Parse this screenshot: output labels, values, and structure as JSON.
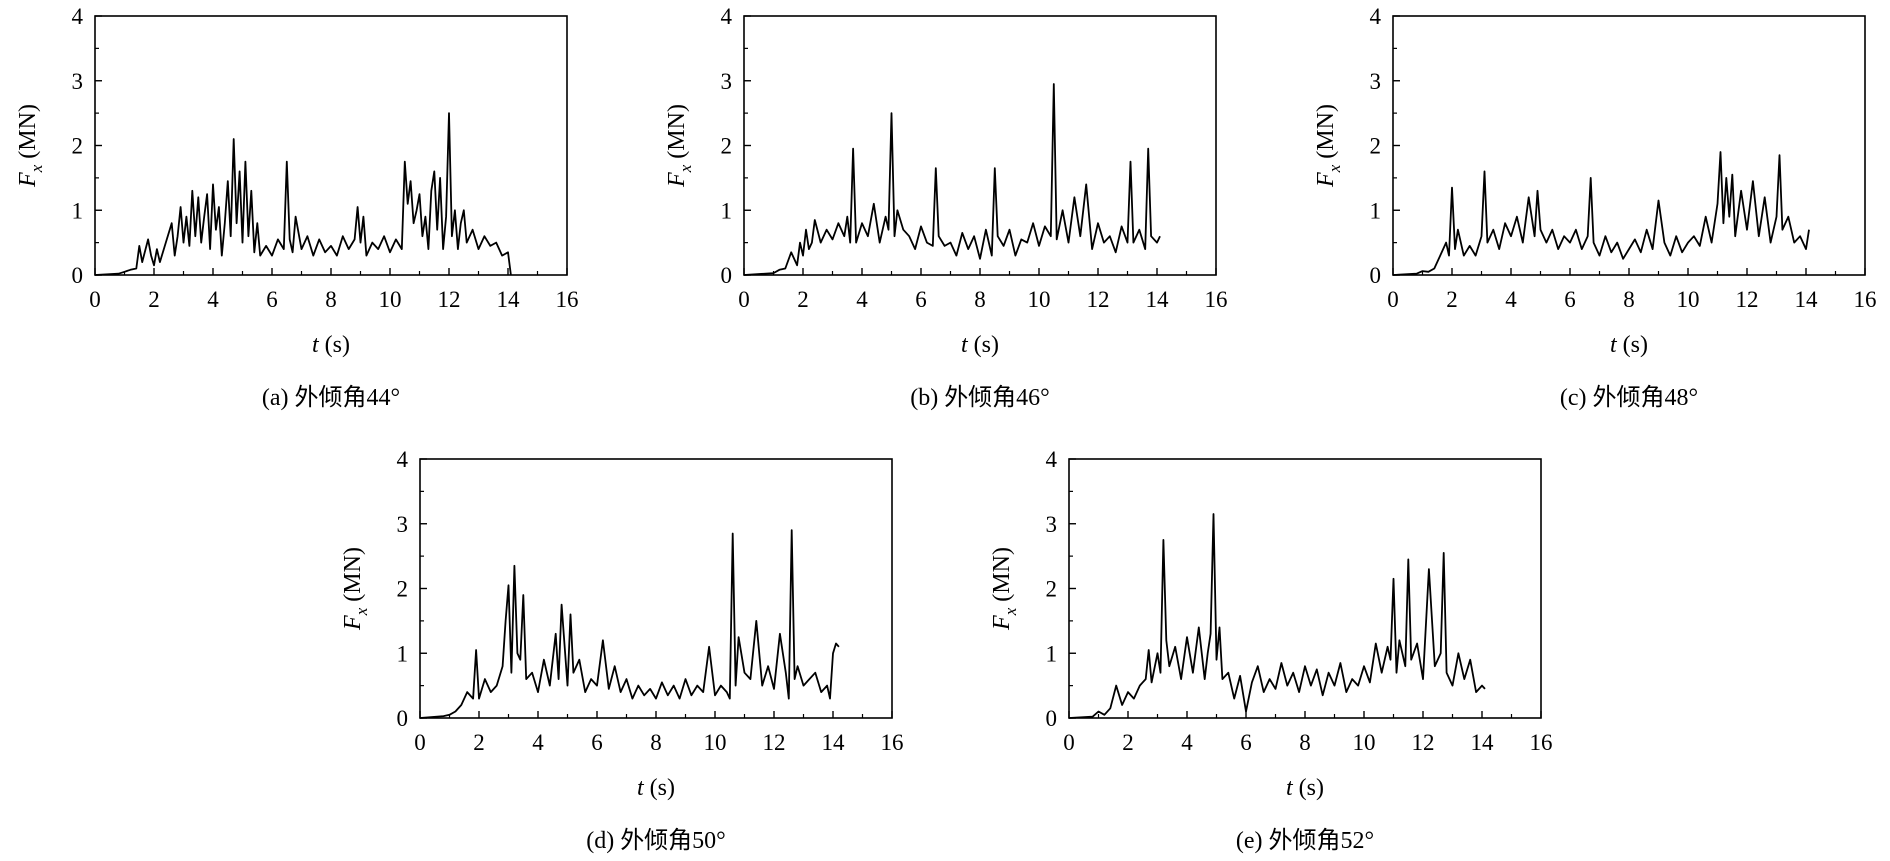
{
  "figure": {
    "panels": [
      {
        "caption": "(a) 外倾角44°"
      },
      {
        "caption": "(b) 外倾角46°"
      },
      {
        "caption": "(c) 外倾角48°"
      },
      {
        "caption": "(d) 外倾角50°"
      },
      {
        "caption": "(e) 外倾角52°"
      }
    ]
  },
  "colors": {
    "line": "#000000",
    "axis": "#000000",
    "background": "#ffffff"
  },
  "chart_data": [
    {
      "type": "line",
      "title": "(a) 外倾角44°",
      "xlabel_var": "t",
      "xlabel_unit": "(s)",
      "ylabel_var": "F",
      "ylabel_sub": "x",
      "ylabel_unit": "(MN)",
      "xlim": [
        0,
        16
      ],
      "ylim": [
        0,
        4
      ],
      "xticks": [
        0,
        2,
        4,
        6,
        8,
        10,
        12,
        14,
        16
      ],
      "yticks": [
        0,
        1,
        2,
        3,
        4
      ],
      "series": [
        {
          "name": "Fx",
          "x": [
            0.0,
            0.8,
            1.0,
            1.2,
            1.4,
            1.5,
            1.6,
            1.8,
            1.9,
            2.0,
            2.1,
            2.2,
            2.4,
            2.6,
            2.7,
            2.8,
            2.9,
            3.0,
            3.1,
            3.2,
            3.3,
            3.4,
            3.5,
            3.6,
            3.7,
            3.8,
            3.9,
            4.0,
            4.1,
            4.2,
            4.3,
            4.4,
            4.5,
            4.6,
            4.7,
            4.8,
            4.9,
            5.0,
            5.1,
            5.2,
            5.3,
            5.4,
            5.5,
            5.6,
            5.8,
            6.0,
            6.2,
            6.4,
            6.5,
            6.6,
            6.7,
            6.8,
            7.0,
            7.2,
            7.4,
            7.6,
            7.8,
            8.0,
            8.2,
            8.4,
            8.6,
            8.8,
            8.9,
            9.0,
            9.1,
            9.2,
            9.4,
            9.6,
            9.8,
            10.0,
            10.2,
            10.4,
            10.5,
            10.6,
            10.7,
            10.8,
            10.9,
            11.0,
            11.1,
            11.2,
            11.3,
            11.4,
            11.5,
            11.6,
            11.7,
            11.8,
            11.9,
            12.0,
            12.1,
            12.2,
            12.3,
            12.4,
            12.5,
            12.6,
            12.8,
            13.0,
            13.2,
            13.4,
            13.6,
            13.8,
            14.0,
            14.1
          ],
          "y": [
            0.0,
            0.02,
            0.05,
            0.08,
            0.1,
            0.45,
            0.2,
            0.55,
            0.3,
            0.15,
            0.4,
            0.2,
            0.5,
            0.8,
            0.3,
            0.6,
            1.05,
            0.5,
            0.9,
            0.45,
            1.3,
            0.6,
            1.2,
            0.5,
            0.9,
            1.25,
            0.4,
            1.4,
            0.7,
            1.05,
            0.3,
            0.8,
            1.45,
            0.6,
            2.1,
            0.8,
            1.6,
            0.5,
            1.75,
            0.6,
            1.3,
            0.35,
            0.8,
            0.3,
            0.45,
            0.3,
            0.55,
            0.4,
            1.75,
            0.55,
            0.35,
            0.9,
            0.4,
            0.6,
            0.3,
            0.55,
            0.35,
            0.45,
            0.3,
            0.6,
            0.4,
            0.55,
            1.05,
            0.5,
            0.9,
            0.3,
            0.5,
            0.4,
            0.6,
            0.35,
            0.55,
            0.4,
            1.75,
            1.1,
            1.45,
            0.8,
            1.0,
            1.25,
            0.6,
            0.9,
            0.4,
            1.3,
            1.6,
            0.7,
            1.5,
            0.4,
            0.9,
            2.5,
            0.6,
            1.0,
            0.4,
            0.8,
            1.0,
            0.5,
            0.7,
            0.4,
            0.6,
            0.45,
            0.5,
            0.3,
            0.35,
            0.0
          ]
        }
      ]
    },
    {
      "type": "line",
      "title": "(b) 外倾角46°",
      "xlabel_var": "t",
      "xlabel_unit": "(s)",
      "ylabel_var": "F",
      "ylabel_sub": "x",
      "ylabel_unit": "(MN)",
      "xlim": [
        0,
        16
      ],
      "ylim": [
        0,
        4
      ],
      "xticks": [
        0,
        2,
        4,
        6,
        8,
        10,
        12,
        14,
        16
      ],
      "yticks": [
        0,
        1,
        2,
        3,
        4
      ],
      "series": [
        {
          "name": "Fx",
          "x": [
            0.0,
            1.0,
            1.2,
            1.4,
            1.6,
            1.8,
            1.9,
            2.0,
            2.1,
            2.2,
            2.3,
            2.4,
            2.6,
            2.8,
            3.0,
            3.2,
            3.4,
            3.5,
            3.6,
            3.7,
            3.8,
            4.0,
            4.2,
            4.4,
            4.6,
            4.8,
            4.9,
            5.0,
            5.1,
            5.2,
            5.4,
            5.6,
            5.8,
            6.0,
            6.2,
            6.4,
            6.5,
            6.6,
            6.8,
            7.0,
            7.2,
            7.4,
            7.6,
            7.8,
            8.0,
            8.2,
            8.4,
            8.5,
            8.6,
            8.8,
            9.0,
            9.2,
            9.4,
            9.6,
            9.8,
            10.0,
            10.2,
            10.4,
            10.5,
            10.6,
            10.8,
            11.0,
            11.2,
            11.4,
            11.6,
            11.8,
            12.0,
            12.2,
            12.4,
            12.6,
            12.8,
            13.0,
            13.1,
            13.2,
            13.4,
            13.6,
            13.7,
            13.8,
            14.0,
            14.1
          ],
          "y": [
            0.0,
            0.03,
            0.08,
            0.1,
            0.35,
            0.15,
            0.5,
            0.3,
            0.7,
            0.4,
            0.5,
            0.85,
            0.5,
            0.7,
            0.55,
            0.8,
            0.6,
            0.9,
            0.5,
            1.95,
            0.5,
            0.8,
            0.6,
            1.1,
            0.5,
            0.9,
            0.7,
            2.5,
            0.6,
            1.0,
            0.7,
            0.6,
            0.4,
            0.75,
            0.5,
            0.45,
            1.65,
            0.6,
            0.45,
            0.5,
            0.3,
            0.65,
            0.4,
            0.6,
            0.25,
            0.7,
            0.3,
            1.65,
            0.6,
            0.45,
            0.7,
            0.3,
            0.55,
            0.5,
            0.8,
            0.45,
            0.75,
            0.6,
            2.95,
            0.55,
            1.0,
            0.5,
            1.2,
            0.6,
            1.4,
            0.4,
            0.8,
            0.5,
            0.6,
            0.35,
            0.75,
            0.5,
            1.75,
            0.5,
            0.7,
            0.4,
            1.95,
            0.6,
            0.5,
            0.6
          ]
        }
      ]
    },
    {
      "type": "line",
      "title": "(c) 外倾角48°",
      "xlabel_var": "t",
      "xlabel_unit": "(s)",
      "ylabel_var": "F",
      "ylabel_sub": "x",
      "ylabel_unit": "(MN)",
      "xlim": [
        0,
        16
      ],
      "ylim": [
        0,
        4
      ],
      "xticks": [
        0,
        2,
        4,
        6,
        8,
        10,
        12,
        14,
        16
      ],
      "yticks": [
        0,
        1,
        2,
        3,
        4
      ],
      "series": [
        {
          "name": "Fx",
          "x": [
            0.0,
            0.8,
            1.0,
            1.2,
            1.4,
            1.6,
            1.8,
            1.9,
            2.0,
            2.1,
            2.2,
            2.4,
            2.6,
            2.8,
            3.0,
            3.1,
            3.2,
            3.4,
            3.6,
            3.8,
            4.0,
            4.2,
            4.4,
            4.6,
            4.8,
            4.9,
            5.0,
            5.2,
            5.4,
            5.6,
            5.8,
            6.0,
            6.2,
            6.4,
            6.6,
            6.7,
            6.8,
            7.0,
            7.2,
            7.4,
            7.6,
            7.8,
            8.0,
            8.2,
            8.4,
            8.6,
            8.8,
            9.0,
            9.2,
            9.4,
            9.6,
            9.8,
            10.0,
            10.2,
            10.4,
            10.6,
            10.8,
            11.0,
            11.1,
            11.2,
            11.3,
            11.4,
            11.5,
            11.6,
            11.8,
            12.0,
            12.2,
            12.4,
            12.6,
            12.8,
            13.0,
            13.1,
            13.2,
            13.4,
            13.6,
            13.8,
            14.0,
            14.1
          ],
          "y": [
            0.0,
            0.02,
            0.06,
            0.05,
            0.1,
            0.3,
            0.5,
            0.3,
            1.35,
            0.4,
            0.7,
            0.3,
            0.45,
            0.3,
            0.6,
            1.6,
            0.5,
            0.7,
            0.4,
            0.8,
            0.6,
            0.9,
            0.5,
            1.2,
            0.6,
            1.3,
            0.7,
            0.5,
            0.7,
            0.4,
            0.6,
            0.5,
            0.7,
            0.4,
            0.6,
            1.5,
            0.5,
            0.3,
            0.6,
            0.35,
            0.5,
            0.25,
            0.4,
            0.55,
            0.35,
            0.7,
            0.4,
            1.15,
            0.5,
            0.3,
            0.6,
            0.35,
            0.5,
            0.6,
            0.45,
            0.9,
            0.5,
            1.1,
            1.9,
            0.8,
            1.5,
            0.9,
            1.55,
            0.6,
            1.3,
            0.7,
            1.45,
            0.6,
            1.2,
            0.5,
            0.9,
            1.85,
            0.7,
            0.9,
            0.5,
            0.6,
            0.4,
            0.7
          ]
        }
      ]
    },
    {
      "type": "line",
      "title": "(d) 外倾角50°",
      "xlabel_var": "t",
      "xlabel_unit": "(s)",
      "ylabel_var": "F",
      "ylabel_sub": "x",
      "ylabel_unit": "(MN)",
      "xlim": [
        0,
        16
      ],
      "ylim": [
        0,
        4
      ],
      "xticks": [
        0,
        2,
        4,
        6,
        8,
        10,
        12,
        14,
        16
      ],
      "yticks": [
        0,
        1,
        2,
        3,
        4
      ],
      "series": [
        {
          "name": "Fx",
          "x": [
            0.0,
            0.8,
            1.0,
            1.2,
            1.4,
            1.6,
            1.8,
            1.9,
            2.0,
            2.2,
            2.4,
            2.6,
            2.8,
            2.9,
            3.0,
            3.1,
            3.2,
            3.3,
            3.4,
            3.5,
            3.6,
            3.8,
            4.0,
            4.2,
            4.4,
            4.6,
            4.7,
            4.8,
            5.0,
            5.1,
            5.2,
            5.4,
            5.6,
            5.8,
            6.0,
            6.2,
            6.4,
            6.6,
            6.8,
            7.0,
            7.2,
            7.4,
            7.6,
            7.8,
            8.0,
            8.2,
            8.4,
            8.6,
            8.8,
            9.0,
            9.2,
            9.4,
            9.6,
            9.8,
            10.0,
            10.2,
            10.4,
            10.5,
            10.6,
            10.7,
            10.8,
            11.0,
            11.2,
            11.4,
            11.6,
            11.8,
            12.0,
            12.2,
            12.4,
            12.5,
            12.6,
            12.7,
            12.8,
            13.0,
            13.2,
            13.4,
            13.6,
            13.8,
            13.9,
            14.0,
            14.1,
            14.2
          ],
          "y": [
            0.0,
            0.03,
            0.05,
            0.1,
            0.2,
            0.4,
            0.3,
            1.05,
            0.3,
            0.6,
            0.4,
            0.5,
            0.8,
            1.5,
            2.05,
            0.7,
            2.35,
            1.0,
            0.9,
            1.9,
            0.6,
            0.7,
            0.4,
            0.9,
            0.5,
            1.3,
            0.6,
            1.75,
            0.5,
            1.6,
            0.7,
            0.9,
            0.4,
            0.6,
            0.5,
            1.2,
            0.45,
            0.8,
            0.4,
            0.6,
            0.3,
            0.5,
            0.35,
            0.45,
            0.3,
            0.55,
            0.35,
            0.5,
            0.3,
            0.6,
            0.35,
            0.5,
            0.4,
            1.1,
            0.35,
            0.5,
            0.4,
            0.3,
            2.85,
            0.5,
            1.25,
            0.7,
            0.6,
            1.5,
            0.5,
            0.8,
            0.45,
            1.3,
            0.7,
            0.3,
            2.9,
            0.6,
            0.8,
            0.5,
            0.6,
            0.7,
            0.4,
            0.5,
            0.3,
            1.0,
            1.15,
            1.1
          ]
        }
      ]
    },
    {
      "type": "line",
      "title": "(e) 外倾角52°",
      "xlabel_var": "t",
      "xlabel_unit": "(s)",
      "ylabel_var": "F",
      "ylabel_sub": "x",
      "ylabel_unit": "(MN)",
      "xlim": [
        0,
        16
      ],
      "ylim": [
        0,
        4
      ],
      "xticks": [
        0,
        2,
        4,
        6,
        8,
        10,
        12,
        14,
        16
      ],
      "yticks": [
        0,
        1,
        2,
        3,
        4
      ],
      "series": [
        {
          "name": "Fx",
          "x": [
            0.0,
            0.8,
            1.0,
            1.2,
            1.4,
            1.6,
            1.8,
            2.0,
            2.2,
            2.4,
            2.6,
            2.7,
            2.8,
            3.0,
            3.1,
            3.2,
            3.3,
            3.4,
            3.6,
            3.8,
            4.0,
            4.2,
            4.4,
            4.6,
            4.7,
            4.8,
            4.9,
            5.0,
            5.1,
            5.2,
            5.4,
            5.6,
            5.8,
            6.0,
            6.2,
            6.4,
            6.6,
            6.8,
            7.0,
            7.2,
            7.4,
            7.6,
            7.8,
            8.0,
            8.2,
            8.4,
            8.6,
            8.8,
            9.0,
            9.2,
            9.4,
            9.6,
            9.8,
            10.0,
            10.2,
            10.4,
            10.6,
            10.8,
            10.9,
            11.0,
            11.1,
            11.2,
            11.4,
            11.5,
            11.6,
            11.8,
            12.0,
            12.2,
            12.4,
            12.6,
            12.7,
            12.8,
            13.0,
            13.2,
            13.4,
            13.6,
            13.8,
            14.0,
            14.1
          ],
          "y": [
            0.0,
            0.02,
            0.1,
            0.05,
            0.15,
            0.5,
            0.2,
            0.4,
            0.3,
            0.5,
            0.6,
            1.05,
            0.55,
            1.0,
            0.7,
            2.75,
            1.2,
            0.8,
            1.1,
            0.6,
            1.25,
            0.7,
            1.4,
            0.6,
            1.0,
            1.3,
            3.15,
            0.9,
            1.4,
            0.6,
            0.7,
            0.3,
            0.65,
            0.1,
            0.55,
            0.8,
            0.4,
            0.6,
            0.45,
            0.85,
            0.5,
            0.7,
            0.4,
            0.8,
            0.5,
            0.75,
            0.35,
            0.7,
            0.5,
            0.85,
            0.4,
            0.6,
            0.5,
            0.8,
            0.55,
            1.15,
            0.7,
            1.1,
            0.9,
            2.15,
            0.7,
            1.2,
            0.8,
            2.45,
            0.9,
            1.15,
            0.6,
            2.3,
            0.8,
            1.0,
            2.55,
            0.7,
            0.5,
            1.0,
            0.6,
            0.9,
            0.4,
            0.5,
            0.45
          ]
        }
      ]
    }
  ]
}
